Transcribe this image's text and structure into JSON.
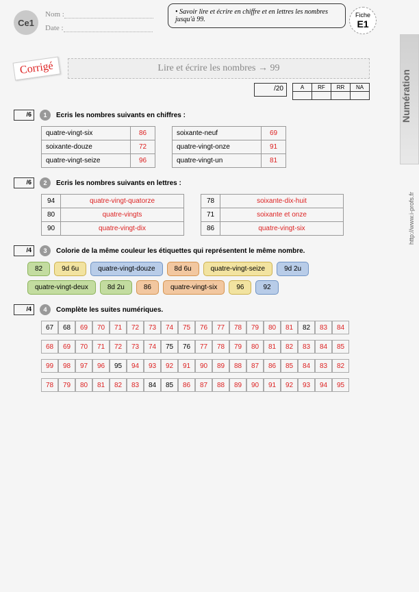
{
  "header": {
    "grade": "Ce1",
    "nom_label": "Nom :",
    "date_label": "Date :",
    "objectif": "• Savoir lire et écrire en chiffre et en lettres les nombres jusqu'à 99.",
    "fiche_label": "Fiche",
    "fiche_code": "E1",
    "sidebar": "Numération",
    "url": "http://www.i-profs.fr",
    "corrige": "Corrigé",
    "title": "Lire et écrire les nombres → 99",
    "score_total": "/20",
    "eval_headers": [
      "A",
      "RF",
      "RR",
      "NA"
    ]
  },
  "colors": {
    "green": "#c3dca0",
    "green_b": "#8bb35a",
    "yellow": "#f2e3a0",
    "yellow_b": "#cdb14f",
    "blue": "#b8cce8",
    "blue_b": "#6f93c4",
    "orange": "#f2c7a0",
    "orange_b": "#d4934f"
  },
  "ex1": {
    "score": "/6",
    "num": "1",
    "instruction": "Ecris les nombres suivants en chiffres :",
    "left": [
      {
        "word": "quatre-vingt-six",
        "num": "86"
      },
      {
        "word": "soixante-douze",
        "num": "72"
      },
      {
        "word": "quatre-vingt-seize",
        "num": "96"
      }
    ],
    "right": [
      {
        "word": "soixante-neuf",
        "num": "69"
      },
      {
        "word": "quatre-vingt-onze",
        "num": "91"
      },
      {
        "word": "quatre-vingt-un",
        "num": "81"
      }
    ]
  },
  "ex2": {
    "score": "/6",
    "num": "2",
    "instruction": "Ecris les nombres suivants en lettres :",
    "left": [
      {
        "num": "94",
        "word": "quatre-vingt-quatorze"
      },
      {
        "num": "80",
        "word": "quatre-vingts"
      },
      {
        "num": "90",
        "word": "quatre-vingt-dix"
      }
    ],
    "right": [
      {
        "num": "78",
        "word": "soixante-dix-huit"
      },
      {
        "num": "71",
        "word": "soixante et onze"
      },
      {
        "num": "86",
        "word": "quatre-vingt-six"
      }
    ]
  },
  "ex3": {
    "score": "/4",
    "num": "3",
    "instruction": "Colorie de la même couleur les étiquettes qui représentent le même nombre.",
    "tags": [
      {
        "t": "82",
        "c": "green"
      },
      {
        "t": "9d 6u",
        "c": "yellow"
      },
      {
        "t": "quatre-vingt-douze",
        "c": "blue"
      },
      {
        "t": "8d 6u",
        "c": "orange"
      },
      {
        "t": "quatre-vingt-seize",
        "c": "yellow"
      },
      {
        "t": "9d 2u",
        "c": "blue"
      },
      {
        "t": "quatre-vingt-deux",
        "c": "green"
      },
      {
        "t": "8d 2u",
        "c": "green"
      },
      {
        "t": "86",
        "c": "orange"
      },
      {
        "t": "quatre-vingt-six",
        "c": "orange"
      },
      {
        "t": "96",
        "c": "yellow"
      },
      {
        "t": "92",
        "c": "blue"
      }
    ]
  },
  "ex4": {
    "score": "/4",
    "num": "4",
    "instruction": "Complète les suites numériques.",
    "rows": [
      {
        "cells": [
          67,
          68,
          69,
          70,
          71,
          72,
          73,
          74,
          75,
          76,
          77,
          78,
          79,
          80,
          81,
          82,
          83,
          84
        ],
        "given": [
          0,
          1,
          15
        ]
      },
      {
        "cells": [
          68,
          69,
          70,
          71,
          72,
          73,
          74,
          75,
          76,
          77,
          78,
          79,
          80,
          81,
          82,
          83,
          84,
          85
        ],
        "given": [
          7,
          8
        ]
      },
      {
        "cells": [
          99,
          98,
          97,
          96,
          95,
          94,
          93,
          92,
          91,
          90,
          89,
          88,
          87,
          86,
          85,
          84,
          83,
          82
        ],
        "given": [
          4
        ]
      },
      {
        "cells": [
          78,
          79,
          80,
          81,
          82,
          83,
          84,
          85,
          86,
          87,
          88,
          89,
          90,
          91,
          92,
          93,
          94,
          95
        ],
        "given": [
          6,
          7
        ]
      }
    ]
  }
}
